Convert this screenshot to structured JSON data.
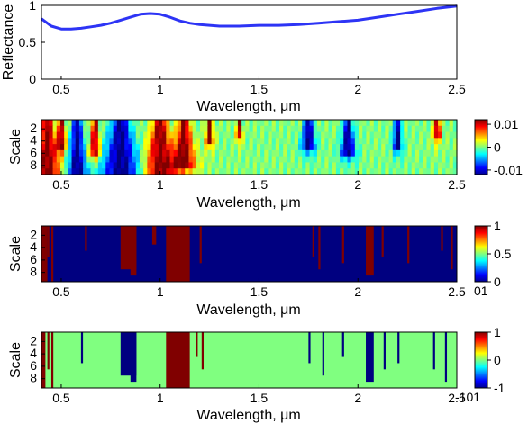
{
  "chart_data": [
    {
      "type": "line",
      "xlabel": "Wavelength, μm",
      "ylabel": "Reflectance",
      "xlim": [
        0.4,
        2.5
      ],
      "ylim": [
        0,
        1
      ],
      "xticks": [
        "0.5",
        "1",
        "1.5",
        "2",
        "2.5"
      ],
      "yticks": [
        "0",
        "0.5",
        "1"
      ],
      "series_color": "#2d34f5",
      "x": [
        0.4,
        0.45,
        0.5,
        0.55,
        0.6,
        0.65,
        0.7,
        0.75,
        0.8,
        0.85,
        0.9,
        0.95,
        1.0,
        1.05,
        1.1,
        1.15,
        1.2,
        1.25,
        1.3,
        1.35,
        1.4,
        1.5,
        1.6,
        1.7,
        1.8,
        1.9,
        2.0,
        2.1,
        2.2,
        2.3,
        2.4,
        2.5
      ],
      "y": [
        0.82,
        0.72,
        0.68,
        0.68,
        0.69,
        0.71,
        0.73,
        0.76,
        0.8,
        0.84,
        0.88,
        0.89,
        0.88,
        0.84,
        0.79,
        0.76,
        0.74,
        0.73,
        0.72,
        0.72,
        0.72,
        0.73,
        0.73,
        0.74,
        0.76,
        0.78,
        0.8,
        0.84,
        0.88,
        0.92,
        0.96,
        0.99
      ]
    },
    {
      "type": "heatmap",
      "xlabel": "Wavelength, μm",
      "ylabel": "Scale",
      "xlim": [
        0.4,
        2.5
      ],
      "xticks": [
        "0.5",
        "1",
        "1.5",
        "2",
        "2.5"
      ],
      "yticks": [
        "2",
        "4",
        "6",
        "8"
      ],
      "scales": [
        1,
        2,
        3,
        4,
        5,
        6,
        7,
        8,
        9
      ],
      "colorbar": {
        "ticks": [
          "0.01",
          "0",
          "-0.01"
        ],
        "range": [
          -0.012,
          0.012
        ]
      },
      "colormap": "jet",
      "features": [
        {
          "center": 0.43,
          "width": 0.04,
          "sign": 1,
          "max_scale": 9
        },
        {
          "center": 0.5,
          "width": 0.02,
          "sign": 1,
          "max_scale": 5
        },
        {
          "center": 0.58,
          "width": 0.03,
          "sign": -1,
          "max_scale": 9
        },
        {
          "center": 0.67,
          "width": 0.02,
          "sign": 1,
          "max_scale": 6
        },
        {
          "center": 0.8,
          "width": 0.06,
          "sign": -1,
          "max_scale": 9
        },
        {
          "center": 1.0,
          "width": 0.05,
          "sign": 1,
          "max_scale": 9
        },
        {
          "center": 1.12,
          "width": 0.04,
          "sign": 1,
          "max_scale": 8
        },
        {
          "center": 1.25,
          "width": 0.02,
          "sign": 1,
          "max_scale": 4
        },
        {
          "center": 1.4,
          "width": 0.015,
          "sign": 1,
          "max_scale": 3
        },
        {
          "center": 1.75,
          "width": 0.03,
          "sign": -1,
          "max_scale": 5
        },
        {
          "center": 1.95,
          "width": 0.03,
          "sign": -1,
          "max_scale": 6
        },
        {
          "center": 2.2,
          "width": 0.02,
          "sign": -1,
          "max_scale": 5
        },
        {
          "center": 2.4,
          "width": 0.02,
          "sign": 1,
          "max_scale": 3
        }
      ]
    },
    {
      "type": "heatmap",
      "xlabel": "Wavelength, μm",
      "ylabel": "Scale",
      "xlim": [
        0.4,
        2.5
      ],
      "xticks": [
        "0.5",
        "1",
        "1.5",
        "2",
        "2.5"
      ],
      "yticks": [
        "2",
        "4",
        "6",
        "8"
      ],
      "colorbar": {
        "ticks": [
          "1",
          "0.5",
          "0"
        ],
        "range": [
          0,
          1
        ],
        "bottom_label": "01"
      },
      "colormap": "jet",
      "background_value": 0,
      "regions": [
        {
          "x0": 0.4,
          "x1": 0.43,
          "value": 1,
          "max_scale": 9
        },
        {
          "x0": 0.43,
          "x1": 0.44,
          "value": 1,
          "max_scale": 5
        },
        {
          "x0": 0.45,
          "x1": 0.46,
          "value": 1,
          "max_scale": 9
        },
        {
          "x0": 0.62,
          "x1": 0.63,
          "value": 1,
          "max_scale": 4
        },
        {
          "x0": 0.8,
          "x1": 0.88,
          "value": 1,
          "max_scale": 7
        },
        {
          "x0": 0.85,
          "x1": 0.88,
          "value": 1,
          "max_scale": 8
        },
        {
          "x0": 0.96,
          "x1": 0.98,
          "value": 1,
          "max_scale": 3
        },
        {
          "x0": 1.03,
          "x1": 1.15,
          "value": 1,
          "max_scale": 9
        },
        {
          "x0": 1.2,
          "x1": 1.21,
          "value": 1,
          "max_scale": 6
        },
        {
          "x0": 1.77,
          "x1": 1.78,
          "value": 1,
          "max_scale": 5
        },
        {
          "x0": 1.8,
          "x1": 1.81,
          "value": 1,
          "max_scale": 7
        },
        {
          "x0": 1.92,
          "x1": 1.93,
          "value": 1,
          "max_scale": 6
        },
        {
          "x0": 2.04,
          "x1": 2.08,
          "value": 1,
          "max_scale": 8
        },
        {
          "x0": 2.12,
          "x1": 2.13,
          "value": 1,
          "max_scale": 5
        },
        {
          "x0": 2.25,
          "x1": 2.26,
          "value": 1,
          "max_scale": 6
        },
        {
          "x0": 2.42,
          "x1": 2.43,
          "value": 1,
          "max_scale": 4
        },
        {
          "x0": 2.47,
          "x1": 2.48,
          "value": 1,
          "max_scale": 7
        }
      ]
    },
    {
      "type": "heatmap",
      "xlabel": "Wavelength, μm",
      "ylabel": "Scale",
      "xlim": [
        0.4,
        2.5
      ],
      "xticks": [
        "0.5",
        "1",
        "1.5",
        "2",
        "2.5"
      ],
      "yticks": [
        "2",
        "4",
        "6",
        "8"
      ],
      "colorbar": {
        "ticks": [
          "1",
          "0",
          "-1"
        ],
        "range": [
          -1,
          1
        ],
        "bottom_label": "-101"
      },
      "colormap": "jet",
      "background_value": 0,
      "regions": [
        {
          "x0": 0.4,
          "x1": 0.42,
          "value": 1,
          "max_scale": 9
        },
        {
          "x0": 0.43,
          "x1": 0.44,
          "value": 1,
          "max_scale": 6
        },
        {
          "x0": 0.45,
          "x1": 0.46,
          "value": 1,
          "max_scale": 9
        },
        {
          "x0": 0.6,
          "x1": 0.61,
          "value": -1,
          "max_scale": 5
        },
        {
          "x0": 0.8,
          "x1": 0.88,
          "value": -1,
          "max_scale": 7
        },
        {
          "x0": 0.85,
          "x1": 0.88,
          "value": -1,
          "max_scale": 8
        },
        {
          "x0": 1.03,
          "x1": 1.15,
          "value": 1,
          "max_scale": 9
        },
        {
          "x0": 1.18,
          "x1": 1.19,
          "value": 1,
          "max_scale": 4
        },
        {
          "x0": 1.21,
          "x1": 1.22,
          "value": 1,
          "max_scale": 6
        },
        {
          "x0": 1.75,
          "x1": 1.76,
          "value": -1,
          "max_scale": 5
        },
        {
          "x0": 1.82,
          "x1": 1.83,
          "value": -1,
          "max_scale": 7
        },
        {
          "x0": 1.92,
          "x1": 1.93,
          "value": -1,
          "max_scale": 4
        },
        {
          "x0": 2.04,
          "x1": 2.08,
          "value": -1,
          "max_scale": 8
        },
        {
          "x0": 2.13,
          "x1": 2.14,
          "value": -1,
          "max_scale": 6
        },
        {
          "x0": 2.2,
          "x1": 2.21,
          "value": -1,
          "max_scale": 5
        },
        {
          "x0": 2.38,
          "x1": 2.39,
          "value": -1,
          "max_scale": 6
        },
        {
          "x0": 2.44,
          "x1": 2.45,
          "value": -1,
          "max_scale": 8
        }
      ]
    }
  ]
}
